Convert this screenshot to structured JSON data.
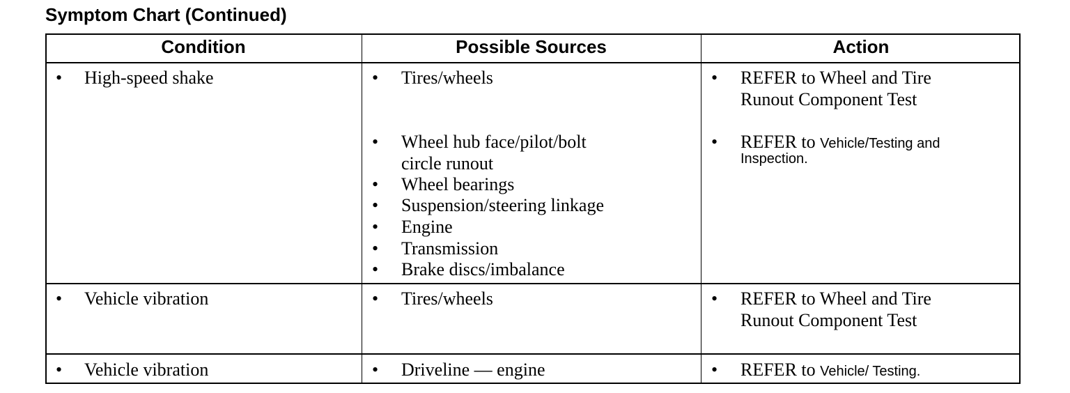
{
  "title": "Symptom Chart (Continued)",
  "headers": [
    "Condition",
    "Possible Sources",
    "Action"
  ],
  "bullet": "•",
  "rows": [
    {
      "condition": "High-speed shake",
      "sources": [
        [
          "Tires/wheels"
        ],
        [
          "Wheel hub face/pilot/bolt",
          "circle runout"
        ],
        [
          "Wheel bearings"
        ],
        [
          "Suspension/steering linkage"
        ],
        [
          "Engine"
        ],
        [
          "Transmission"
        ],
        [
          "Brake discs/imbalance"
        ]
      ],
      "actions": [
        {
          "serif": [
            "REFER to Wheel and Tire",
            "Runout Component Test"
          ]
        },
        {
          "prefix": "REFER to",
          "ref": "Vehicle/Testing and",
          "ref2": "Inspection."
        }
      ]
    },
    {
      "condition": "Vehicle vibration",
      "sources": [
        [
          "Tires/wheels"
        ]
      ],
      "actions": [
        {
          "serif": [
            "REFER to Wheel and Tire",
            "Runout Component Test"
          ]
        }
      ]
    },
    {
      "condition": "Vehicle vibration",
      "sources": [
        [
          "Driveline — engine"
        ]
      ],
      "actions": [
        {
          "prefix": "REFER to",
          "ref": "Vehicle/ Testing."
        }
      ]
    }
  ]
}
